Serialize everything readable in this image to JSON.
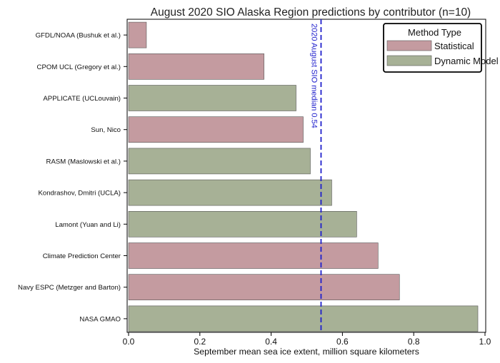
{
  "chart_data": {
    "type": "bar",
    "orientation": "horizontal",
    "title": "August 2020 SIO Alaska Region predictions by contributor (n=10)",
    "xlabel": "September mean sea ice extent, million square kilometers",
    "ylabel": "",
    "xlim": [
      0,
      1.0
    ],
    "xticks": [
      "0.0",
      "0.2",
      "0.4",
      "0.6",
      "0.8",
      "1.0"
    ],
    "grid": false,
    "categories": [
      "GFDL/NOAA (Bushuk et al.)",
      "CPOM UCL (Gregory et al.)",
      "APPLICATE (UCLouvain)",
      "Sun, Nico",
      "RASM (Maslowski et al.)",
      "Kondrashov, Dmitri (UCLA)",
      "Lamont (Yuan and Li)",
      "Climate Prediction Center",
      "Navy ESPC (Metzger and Barton)",
      "NASA GMAO"
    ],
    "values": [
      0.05,
      0.38,
      0.47,
      0.49,
      0.51,
      0.57,
      0.64,
      0.7,
      0.76,
      0.98
    ],
    "method": [
      "Statistical",
      "Statistical",
      "Dynamic Model",
      "Statistical",
      "Dynamic Model",
      "Dynamic Model",
      "Dynamic Model",
      "Statistical",
      "Statistical",
      "Dynamic Model"
    ],
    "median": {
      "value": 0.54,
      "label": "2020 August SIO median 0.54",
      "color": "#1f1fcc"
    },
    "legend": {
      "title": "Method Type",
      "position": "top-right",
      "entries": [
        {
          "name": "Statistical",
          "color": "#c49ba0"
        },
        {
          "name": "Dynamic Model",
          "color": "#a7b196"
        }
      ]
    }
  }
}
